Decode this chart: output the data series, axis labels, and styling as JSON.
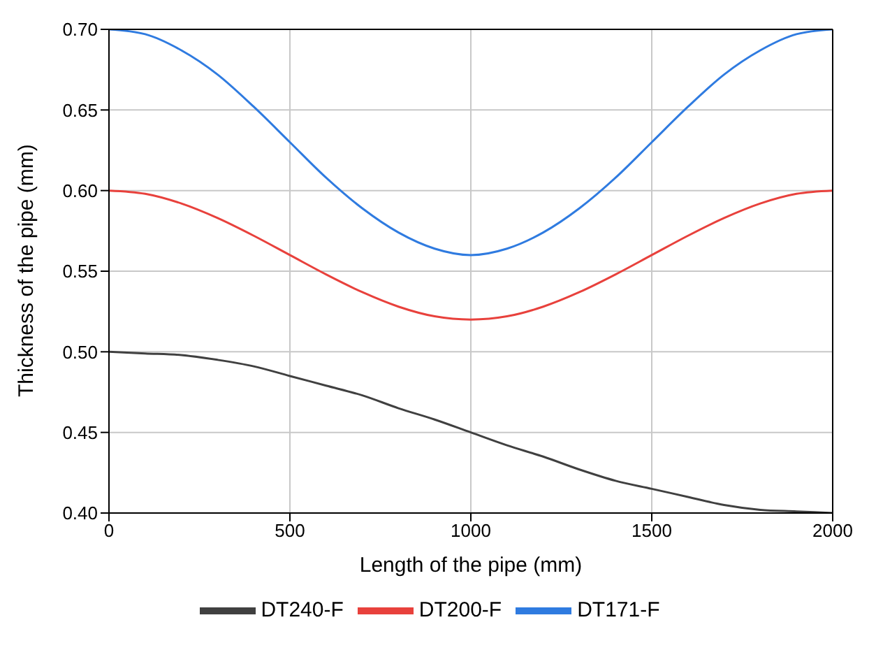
{
  "chart_data": {
    "type": "line",
    "xlabel": "Length of the pipe (mm)",
    "ylabel": "Thickness of the pipe (mm)",
    "x": [
      0,
      100,
      200,
      300,
      400,
      500,
      600,
      700,
      800,
      900,
      1000,
      1100,
      1200,
      1300,
      1400,
      1500,
      1600,
      1700,
      1800,
      1900,
      2000
    ],
    "series": [
      {
        "name": "DT240-F",
        "color": "#404040",
        "values": [
          0.5,
          0.499,
          0.498,
          0.495,
          0.491,
          0.485,
          0.479,
          0.473,
          0.465,
          0.458,
          0.45,
          0.442,
          0.435,
          0.427,
          0.42,
          0.415,
          0.41,
          0.405,
          0.402,
          0.401,
          0.4
        ]
      },
      {
        "name": "DT200-F",
        "color": "#e8413c",
        "values": [
          0.6,
          0.598,
          0.592,
          0.583,
          0.572,
          0.56,
          0.548,
          0.537,
          0.528,
          0.522,
          0.52,
          0.522,
          0.528,
          0.537,
          0.548,
          0.56,
          0.572,
          0.583,
          0.592,
          0.598,
          0.6
        ]
      },
      {
        "name": "DT171-F",
        "color": "#2f7be0",
        "values": [
          0.7,
          0.697,
          0.687,
          0.672,
          0.652,
          0.63,
          0.608,
          0.589,
          0.574,
          0.564,
          0.56,
          0.564,
          0.574,
          0.589,
          0.608,
          0.63,
          0.652,
          0.672,
          0.687,
          0.697,
          0.7
        ]
      }
    ],
    "xlim": [
      0,
      2000
    ],
    "xticks": [
      0,
      500,
      1000,
      1500,
      2000
    ],
    "ylim": [
      0.4,
      0.7
    ],
    "yticks": [
      {
        "value": 0.4,
        "label": "0.40"
      },
      0.45,
      {
        "value": 0.5,
        "label": "0.50"
      },
      0.55,
      {
        "value": 0.6,
        "label": "0.60"
      },
      0.65,
      {
        "value": 0.7,
        "label": "0.70"
      }
    ],
    "grid": true,
    "legend": "bottom",
    "marker": "none",
    "line_style": "solid"
  }
}
